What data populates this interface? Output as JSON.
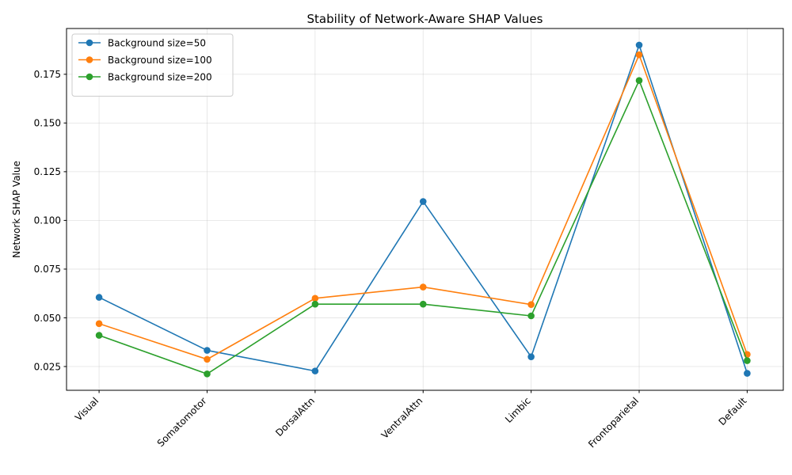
{
  "chart_data": {
    "type": "line",
    "title": "Stability of Network-Aware SHAP Values",
    "xlabel": "",
    "ylabel": "Network SHAP Value",
    "categories": [
      "Visual",
      "Somatomotor",
      "DorsalAttn",
      "VentralAttn",
      "Limbic",
      "Frontoparietal",
      "Default"
    ],
    "ylim": [
      0.0128,
      0.1985
    ],
    "yticks": [
      0.025,
      0.05,
      0.075,
      0.1,
      0.125,
      0.15,
      0.175
    ],
    "ytick_labels": [
      "0.025",
      "0.050",
      "0.075",
      "0.100",
      "0.125",
      "0.150",
      "0.175"
    ],
    "grid": true,
    "legend_position": "top-left",
    "series": [
      {
        "name": "Background size=50",
        "color": "#1f77b4",
        "values": [
          0.0605,
          0.0333,
          0.0227,
          0.1097,
          0.03,
          0.19,
          0.0215
        ]
      },
      {
        "name": "Background size=100",
        "color": "#ff7f0e",
        "values": [
          0.047,
          0.0287,
          0.06,
          0.0658,
          0.0568,
          0.185,
          0.0312
        ]
      },
      {
        "name": "Background size=200",
        "color": "#2ca02c",
        "values": [
          0.041,
          0.0212,
          0.057,
          0.057,
          0.051,
          0.1718,
          0.028
        ]
      }
    ]
  }
}
